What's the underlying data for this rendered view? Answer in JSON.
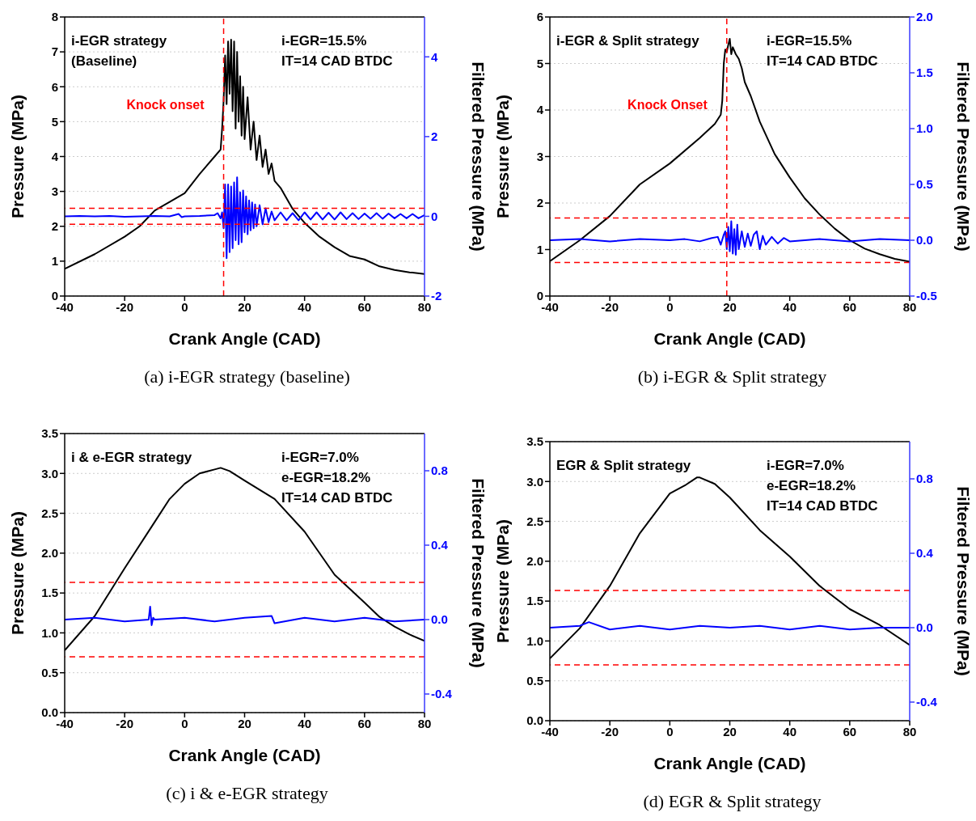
{
  "chart_data": [
    {
      "type": "line",
      "title": "(a) i-EGR strategy (baseline)",
      "xlabel": "Crank Angle (CAD)",
      "ylabel": "Pressure (MPa)",
      "y2label": "Filtered Pressure (MPa)",
      "annotations": [
        "i-EGR strategy\n(Baseline)",
        "i-EGR=15.5%\nIT=14 CAD BTDC"
      ],
      "xlim": [
        -40,
        80
      ],
      "xticks": [
        -40,
        -20,
        0,
        20,
        40,
        60,
        80
      ],
      "ylim": [
        0,
        8
      ],
      "yticks": [
        0,
        1,
        2,
        3,
        4,
        5,
        6,
        7,
        8
      ],
      "y2lim": [
        -2,
        5
      ],
      "y2ticks": [
        -2,
        0,
        2,
        4
      ],
      "grid": "y",
      "ref_lines": [
        {
          "axis": "x",
          "value": 13,
          "label": "Knock onset",
          "color": "#ff0000",
          "line_style": "dashed"
        },
        {
          "axis": "y2",
          "value": 0.2,
          "color": "#ff0000",
          "line_style": "dashed"
        },
        {
          "axis": "y2",
          "value": -0.2,
          "color": "#ff0000",
          "line_style": "dashed"
        }
      ],
      "series": [
        {
          "color": "#000000",
          "x": [
            -40,
            -30,
            -20,
            -15,
            -10,
            -5,
            0,
            5,
            10,
            12,
            12.5,
            13,
            13.5,
            14,
            14.5,
            15,
            15.5,
            16,
            16.5,
            17,
            17.5,
            18,
            18.5,
            19,
            19.5,
            20,
            21,
            22,
            23,
            24,
            25,
            26,
            27,
            28,
            29,
            30,
            32,
            34,
            36,
            38,
            40,
            45,
            50,
            55,
            60,
            65,
            70,
            75,
            80
          ],
          "values": [
            0.78,
            1.2,
            1.7,
            2.0,
            2.45,
            2.7,
            2.95,
            3.5,
            4.0,
            4.2,
            4.8,
            5.6,
            6.9,
            5.5,
            7.3,
            5.8,
            7.35,
            5.3,
            7.3,
            4.8,
            7.0,
            5.0,
            6.3,
            4.6,
            6.0,
            4.5,
            5.7,
            4.2,
            5.0,
            3.9,
            4.6,
            3.7,
            4.2,
            3.5,
            3.8,
            3.3,
            3.1,
            2.8,
            2.5,
            2.3,
            2.1,
            1.7,
            1.4,
            1.15,
            1.05,
            0.85,
            0.75,
            0.68,
            0.63
          ]
        },
        {
          "color": "#0000ff",
          "axis": "y2",
          "x": [
            -40,
            -35,
            -30,
            -25,
            -20,
            -15,
            -10,
            -5,
            -2,
            -1,
            0,
            5,
            10,
            11,
            12,
            12.5,
            13,
            13.5,
            14,
            14.5,
            15,
            15.5,
            16,
            16.5,
            17,
            17.5,
            18,
            18.5,
            19,
            19.5,
            20,
            20.5,
            21,
            21.5,
            22,
            22.5,
            23,
            23.5,
            24,
            25,
            26,
            27,
            28,
            29,
            30,
            32,
            34,
            36,
            38,
            40,
            42,
            44,
            46,
            48,
            50,
            52,
            54,
            56,
            58,
            60,
            62,
            64,
            66,
            68,
            70,
            72,
            74,
            76,
            78,
            80
          ],
          "values": [
            0,
            0.01,
            0,
            0.01,
            -0.01,
            0,
            0.01,
            0,
            0.06,
            -0.02,
            0,
            0.01,
            0.03,
            0.08,
            -0.05,
            0.1,
            -0.3,
            0.8,
            -1.05,
            0.8,
            -0.9,
            0.75,
            -0.8,
            0.85,
            -0.6,
            0.98,
            -0.7,
            0.6,
            -0.65,
            0.65,
            -0.4,
            0.5,
            -0.45,
            0.4,
            -0.35,
            0.35,
            -0.3,
            0.3,
            -0.25,
            0.28,
            -0.2,
            0.2,
            -0.15,
            0.12,
            -0.1,
            0.1,
            -0.1,
            0.08,
            -0.1,
            0.1,
            -0.08,
            0.1,
            -0.08,
            0.09,
            -0.08,
            0.1,
            -0.07,
            0.08,
            -0.07,
            0.07,
            -0.06,
            0.08,
            -0.06,
            0.07,
            -0.05,
            0.06,
            -0.05,
            0.06,
            -0.05,
            0.03
          ]
        }
      ]
    },
    {
      "type": "line",
      "title": "(b) i-EGR & Split strategy",
      "xlabel": "Crank Angle (CAD)",
      "ylabel": "Pressure (MPa)",
      "y2label": "Filtered Pressure (MPa)",
      "annotations": [
        "i-EGR & Split strategy",
        "i-EGR=15.5%\nIT=14 CAD BTDC"
      ],
      "xlim": [
        -40,
        80
      ],
      "xticks": [
        -40,
        -20,
        0,
        20,
        40,
        60,
        80
      ],
      "ylim": [
        0,
        6
      ],
      "yticks": [
        0,
        1,
        2,
        3,
        4,
        5,
        6
      ],
      "y2lim": [
        -0.5,
        2.0
      ],
      "y2ticks": [
        -0.5,
        {
          "value": 0,
          "label": "0.0"
        },
        0.5,
        {
          "value": 1,
          "label": "1.0"
        },
        1.5,
        {
          "value": 2,
          "label": "2.0"
        }
      ],
      "grid": "y",
      "ref_lines": [
        {
          "axis": "x",
          "value": 19,
          "label": "Knock Onset",
          "color": "#ff0000",
          "line_style": "dashed"
        },
        {
          "axis": "y2",
          "value": 0.2,
          "color": "#ff0000",
          "line_style": "dashed"
        },
        {
          "axis": "y2",
          "value": -0.2,
          "color": "#ff0000",
          "line_style": "dashed"
        }
      ],
      "series": [
        {
          "color": "#000000",
          "x": [
            -40,
            -30,
            -20,
            -10,
            0,
            10,
            15,
            17,
            17.5,
            18,
            18.5,
            19,
            19.5,
            20,
            20.5,
            21,
            22,
            23,
            24,
            25,
            27,
            30,
            35,
            40,
            45,
            50,
            55,
            60,
            65,
            70,
            75,
            80
          ],
          "values": [
            0.75,
            1.2,
            1.72,
            2.4,
            2.85,
            3.4,
            3.7,
            3.9,
            4.2,
            5.0,
            5.3,
            5.25,
            5.4,
            5.53,
            5.2,
            5.35,
            5.2,
            5.1,
            4.9,
            4.6,
            4.3,
            3.75,
            3.05,
            2.55,
            2.1,
            1.75,
            1.45,
            1.2,
            1.02,
            0.9,
            0.8,
            0.74
          ]
        },
        {
          "color": "#0000ff",
          "axis": "y2",
          "x": [
            -40,
            -30,
            -20,
            -10,
            0,
            5,
            10,
            14,
            16,
            17,
            18,
            18.5,
            19,
            19.5,
            20,
            20.5,
            21,
            21.5,
            22,
            22.5,
            23,
            24,
            25,
            26,
            27,
            28,
            29,
            30,
            31,
            32,
            34,
            36,
            38,
            40,
            50,
            60,
            70,
            80
          ],
          "values": [
            0,
            0.01,
            -0.01,
            0.01,
            0,
            0.01,
            -0.01,
            0.02,
            0.03,
            -0.04,
            0.05,
            0.08,
            -0.08,
            0.12,
            -0.1,
            0.17,
            -0.12,
            0.1,
            -0.13,
            0.14,
            -0.08,
            0.08,
            -0.06,
            0.06,
            -0.05,
            0.05,
            0.08,
            -0.08,
            0.04,
            -0.04,
            0.03,
            -0.03,
            0.02,
            -0.01,
            0.01,
            -0.01,
            0.01,
            0
          ]
        }
      ]
    },
    {
      "type": "line",
      "title": "(c) i & e-EGR strategy",
      "xlabel": "Crank Angle (CAD)",
      "ylabel": "Pressure (MPa)",
      "y2label": "Filtered Pressure (MPa)",
      "annotations": [
        "i & e-EGR strategy",
        "i-EGR=7.0%\ne-EGR=18.2%\nIT=14 CAD BTDC"
      ],
      "xlim": [
        -40,
        80
      ],
      "xticks": [
        -40,
        -20,
        0,
        20,
        40,
        60,
        80
      ],
      "ylim": [
        0,
        3.5
      ],
      "yticks": [
        {
          "value": 0,
          "label": "0.0"
        },
        0.5,
        {
          "value": 1,
          "label": "1.0"
        },
        1.5,
        {
          "value": 2,
          "label": "2.0"
        },
        2.5,
        {
          "value": 3,
          "label": "3.0"
        },
        3.5
      ],
      "y2lim": [
        -0.5,
        1.0
      ],
      "y2ticks": [
        -0.4,
        {
          "value": 0,
          "label": "0.0"
        },
        0.4,
        0.8
      ],
      "grid": "y",
      "ref_lines": [
        {
          "axis": "y2",
          "value": 0.2,
          "color": "#ff0000",
          "line_style": "dashed"
        },
        {
          "axis": "y2",
          "value": -0.2,
          "color": "#ff0000",
          "line_style": "dashed"
        }
      ],
      "series": [
        {
          "color": "#000000",
          "x": [
            -40,
            -30,
            -20,
            -10,
            -5,
            0,
            5,
            10,
            12,
            15,
            20,
            30,
            40,
            50,
            60,
            65,
            70,
            75,
            80
          ],
          "values": [
            0.78,
            1.21,
            1.81,
            2.39,
            2.68,
            2.87,
            3.0,
            3.05,
            3.07,
            3.03,
            2.91,
            2.68,
            2.27,
            1.73,
            1.38,
            1.2,
            1.08,
            0.98,
            0.9
          ]
        },
        {
          "color": "#0000ff",
          "axis": "y2",
          "x": [
            -40,
            -30,
            -20,
            -12,
            -11.5,
            -11,
            -10.5,
            -10,
            0,
            10,
            20,
            29,
            30,
            40,
            50,
            60,
            70,
            80
          ],
          "values": [
            0,
            0.01,
            -0.01,
            0,
            0.07,
            -0.03,
            0.01,
            0,
            0.01,
            -0.01,
            0.01,
            0.02,
            -0.02,
            0.01,
            -0.01,
            0.01,
            -0.01,
            0
          ]
        }
      ]
    },
    {
      "type": "line",
      "title": "(d) EGR & Split strategy",
      "xlabel": "Crank Angle (CAD)",
      "ylabel": "Pressure (MPa)",
      "y2label": "Filtered Pressure (MPa)",
      "annotations": [
        "EGR & Split strategy",
        "i-EGR=7.0%\ne-EGR=18.2%\nIT=14 CAD BTDC"
      ],
      "xlim": [
        -40,
        80
      ],
      "xticks": [
        -40,
        -20,
        0,
        20,
        40,
        60,
        80
      ],
      "ylim": [
        0,
        3.5
      ],
      "yticks": [
        {
          "value": 0,
          "label": "0.0"
        },
        0.5,
        {
          "value": 1,
          "label": "1.0"
        },
        1.5,
        {
          "value": 2,
          "label": "2.0"
        },
        2.5,
        {
          "value": 3,
          "label": "3.0"
        },
        3.5
      ],
      "y2lim": [
        -0.5,
        1.0
      ],
      "y2ticks": [
        -0.4,
        {
          "value": 0,
          "label": "0.0"
        },
        0.4,
        0.8
      ],
      "grid": "y",
      "ref_lines": [
        {
          "axis": "y2",
          "value": 0.2,
          "color": "#ff0000",
          "line_style": "dashed"
        },
        {
          "axis": "y2",
          "value": -0.2,
          "color": "#ff0000",
          "line_style": "dashed"
        }
      ],
      "series": [
        {
          "color": "#000000",
          "x": [
            -40,
            -30,
            -20,
            -10,
            0,
            5,
            9,
            10,
            15,
            20,
            30,
            40,
            50,
            60,
            70,
            80
          ],
          "values": [
            0.78,
            1.16,
            1.69,
            2.35,
            2.85,
            2.95,
            3.05,
            3.05,
            2.97,
            2.8,
            2.39,
            2.06,
            1.69,
            1.4,
            1.2,
            0.95
          ]
        },
        {
          "color": "#0000ff",
          "axis": "y2",
          "x": [
            -40,
            -30,
            -27,
            -20,
            -10,
            0,
            10,
            20,
            30,
            40,
            50,
            60,
            70,
            80
          ],
          "values": [
            0,
            0.01,
            0.03,
            -0.01,
            0.01,
            -0.01,
            0.01,
            0,
            0.01,
            -0.01,
            0.01,
            -0.01,
            0,
            0
          ]
        }
      ]
    }
  ]
}
